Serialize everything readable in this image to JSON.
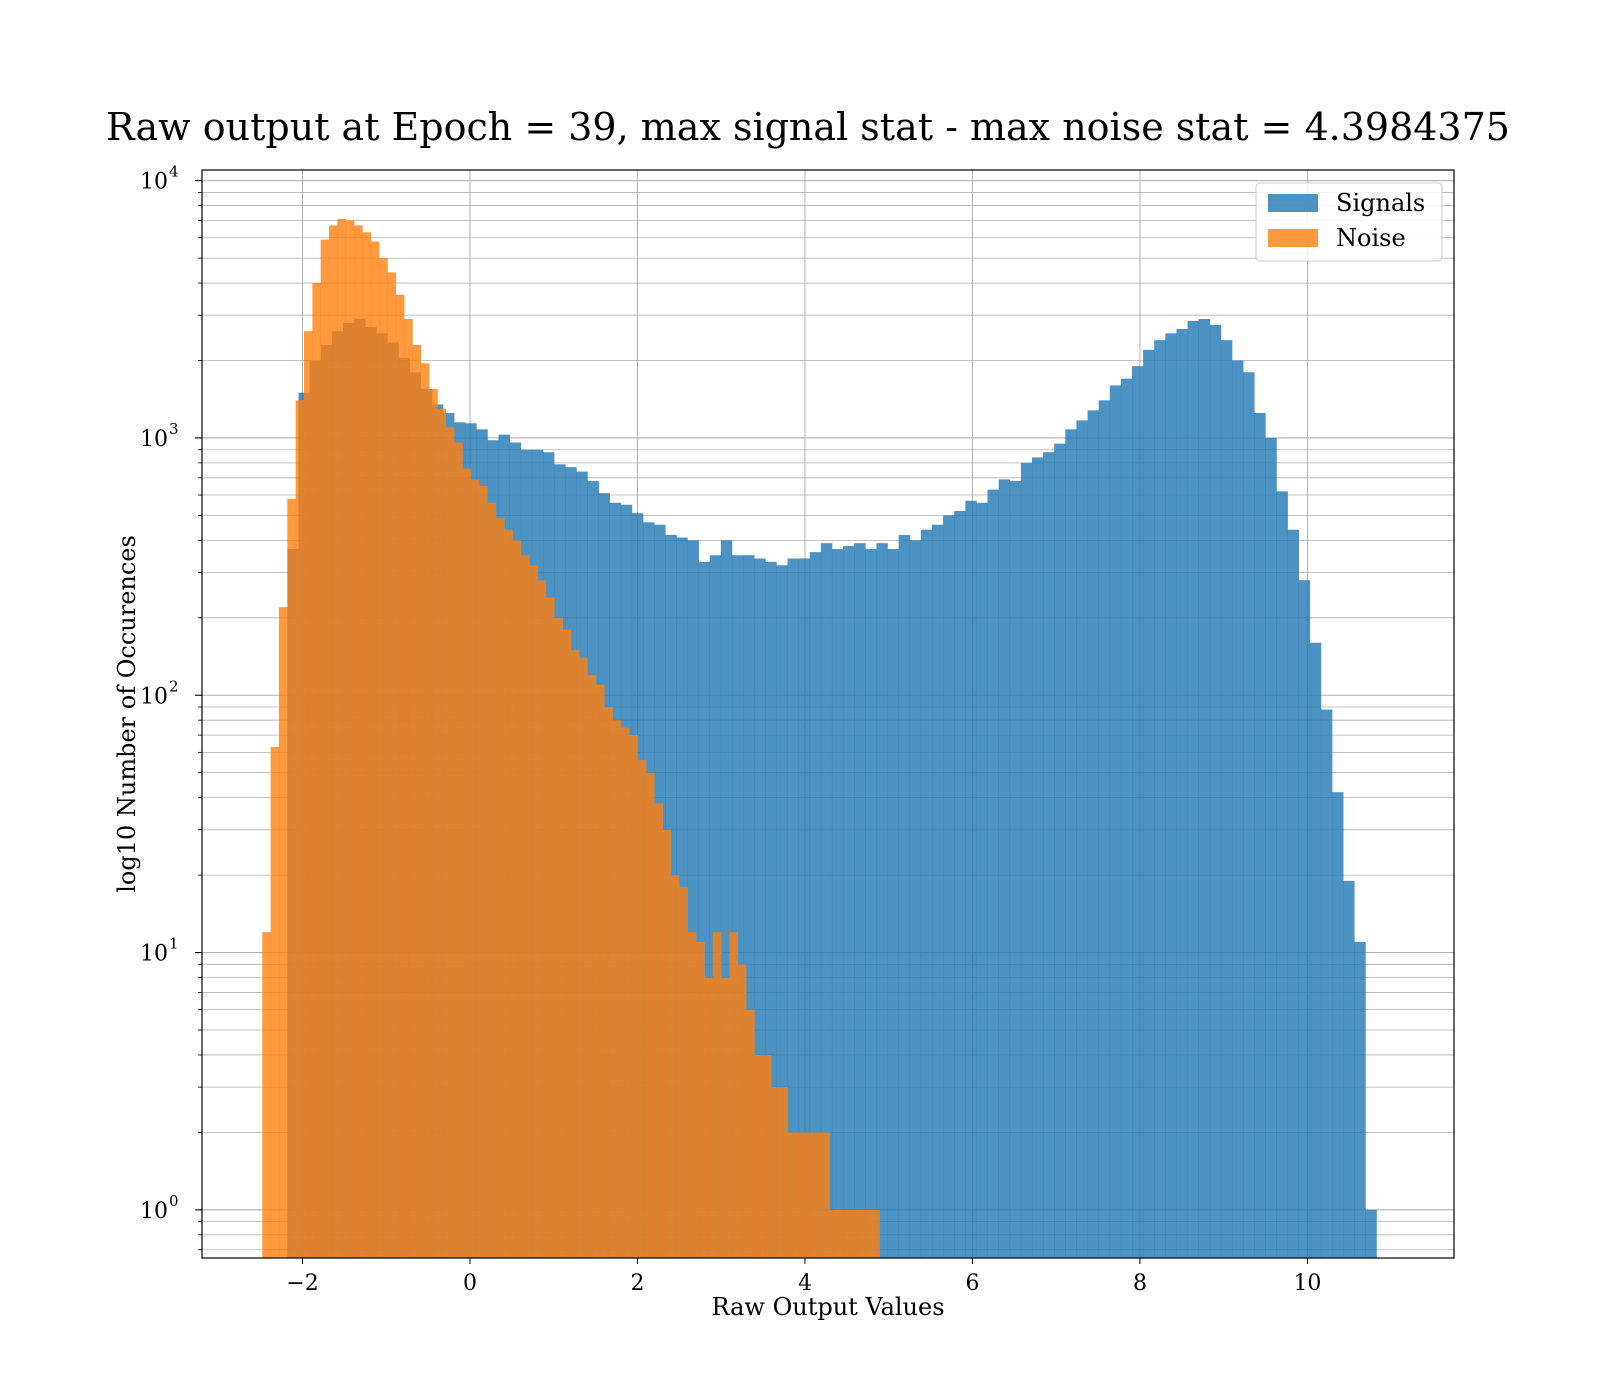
{
  "chart_data": {
    "type": "bar",
    "title": "Raw output at Epoch = 39, max signal stat - max noise stat = 4.3984375",
    "xlabel": "Raw Output Values",
    "ylabel": "log10 Number of Occurences",
    "xlim": [
      -3.2,
      11.75
    ],
    "ylim": [
      0.65,
      11000
    ],
    "yscale": "log",
    "x_ticks": [
      -2,
      0,
      2,
      4,
      6,
      8,
      10
    ],
    "x_tick_labels": [
      "−2",
      "0",
      "2",
      "4",
      "6",
      "8",
      "10"
    ],
    "y_ticks": [
      1,
      10,
      100,
      1000,
      10000
    ],
    "y_tick_base": "10",
    "y_tick_exps": [
      "0",
      "1",
      "2",
      "3",
      "4"
    ],
    "grid": true,
    "legend_position": "upper right",
    "colors": {
      "Signals": "#1f77b4",
      "Noise": "#ff7f0e"
    },
    "series": [
      {
        "name": "Signals",
        "bin_start": -2.18,
        "bin_width": 0.1327,
        "values": [
          370,
          1500,
          2000,
          2300,
          2600,
          2800,
          2900,
          2700,
          2550,
          2350,
          2050,
          1800,
          1550,
          1350,
          1250,
          1150,
          1140,
          1080,
          980,
          1030,
          960,
          900,
          900,
          880,
          790,
          770,
          740,
          680,
          610,
          560,
          550,
          510,
          470,
          460,
          420,
          410,
          400,
          330,
          350,
          400,
          350,
          350,
          340,
          330,
          320,
          340,
          340,
          360,
          390,
          370,
          380,
          390,
          370,
          390,
          370,
          420,
          400,
          440,
          460,
          500,
          520,
          570,
          560,
          630,
          690,
          680,
          800,
          840,
          880,
          950,
          1080,
          1170,
          1280,
          1400,
          1600,
          1700,
          1900,
          2200,
          2400,
          2550,
          2650,
          2850,
          2900,
          2750,
          2400,
          2000,
          1800,
          1250,
          1000,
          620,
          440,
          280,
          160,
          88,
          42,
          19,
          11,
          1
        ]
      },
      {
        "name": "Noise",
        "bin_start": -2.48,
        "bin_width": 0.0996,
        "values": [
          12,
          63,
          220,
          580,
          1400,
          2600,
          4000,
          5900,
          6700,
          7100,
          7000,
          6700,
          6300,
          5800,
          5000,
          4400,
          3600,
          2900,
          2300,
          1950,
          1550,
          1300,
          1100,
          960,
          760,
          690,
          650,
          560,
          490,
          440,
          400,
          350,
          320,
          280,
          240,
          200,
          180,
          150,
          140,
          120,
          110,
          90,
          80,
          75,
          70,
          56,
          50,
          38,
          30,
          20,
          18,
          12,
          11,
          8,
          12,
          8,
          12,
          9,
          6,
          4,
          4,
          3,
          3,
          2,
          2,
          2,
          2,
          2,
          1,
          1,
          1,
          1,
          1,
          1,
          0,
          0,
          0,
          0,
          0,
          0,
          0,
          0,
          0,
          0,
          0,
          0,
          0,
          0,
          0,
          0,
          0,
          0,
          0,
          0,
          0,
          0,
          0,
          0,
          0,
          0
        ]
      }
    ]
  }
}
